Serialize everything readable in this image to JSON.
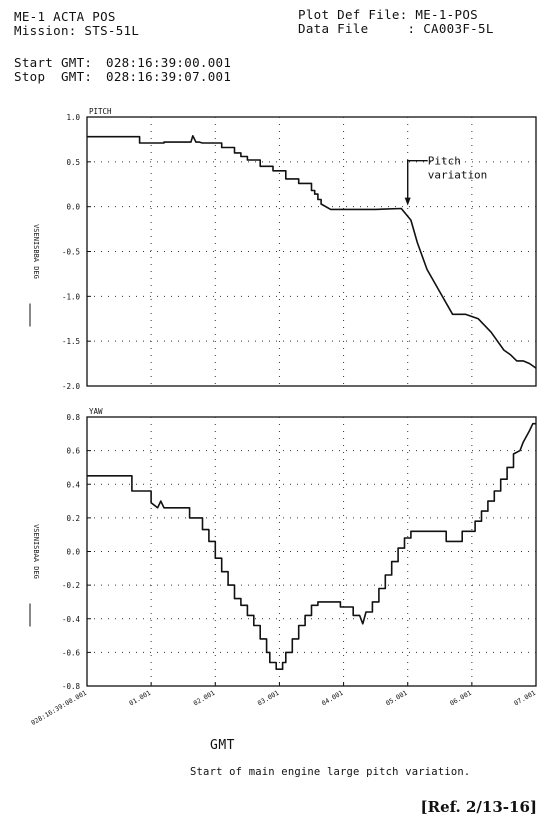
{
  "header": {
    "left_line1": "ME-1 ACTA POS",
    "left_line2": "Mission: STS-51L",
    "right_line1": "Plot Def File: ME-1-POS",
    "right_line2": "Data File     : CA003F-5L",
    "start_label": "Start GMT:",
    "start_value": "028:16:39:00.001",
    "stop_label": "Stop  GMT:",
    "stop_value": "028:16:39:07.001"
  },
  "caption": "Start of main engine large pitch variation.",
  "reference": "[Ref. 2/13-16]",
  "xaxis_title": "GMT",
  "annotation": "Pitch\nvariation",
  "chart_data": [
    {
      "type": "line",
      "title": "PITCH",
      "ylabel": "VSENISBBA DEG",
      "ylim": [
        -2.0,
        1.0
      ],
      "yticks": [
        1.0,
        0.5,
        0.0,
        -0.5,
        -1.0,
        -1.5,
        -2.0
      ],
      "ytick_labels": [
        "1.0",
        "0.5",
        "0.0",
        "-0.5",
        "-1.0",
        "-1.5",
        "-2.0"
      ],
      "xlim": [
        0,
        7
      ],
      "grid": true,
      "annotation": {
        "text": "Pitch\nvariation",
        "x": 5.0,
        "y": 0.0
      },
      "x": [
        0,
        0.4,
        0.4,
        0.5,
        0.5,
        0.82,
        0.82,
        1.2,
        1.2,
        1.62,
        1.65,
        1.7,
        1.75,
        1.8,
        2.1,
        2.1,
        2.3,
        2.3,
        2.4,
        2.4,
        2.5,
        2.5,
        2.7,
        2.7,
        2.9,
        2.9,
        3.1,
        3.1,
        3.3,
        3.3,
        3.5,
        3.5,
        3.55,
        3.55,
        3.6,
        3.6,
        3.65,
        3.65,
        3.8,
        4.0,
        4.2,
        4.5,
        4.9,
        5.05,
        5.15,
        5.3,
        5.5,
        5.7,
        5.9,
        6.1,
        6.3,
        6.5,
        6.6,
        6.7,
        6.8,
        6.9,
        7.0
      ],
      "series": [
        {
          "values": [
            0.78,
            0.78,
            0.78,
            0.78,
            0.78,
            0.78,
            0.71,
            0.71,
            0.72,
            0.72,
            0.79,
            0.72,
            0.72,
            0.71,
            0.71,
            0.66,
            0.66,
            0.6,
            0.6,
            0.56,
            0.56,
            0.52,
            0.52,
            0.45,
            0.45,
            0.4,
            0.4,
            0.31,
            0.31,
            0.26,
            0.26,
            0.18,
            0.18,
            0.14,
            0.14,
            0.08,
            0.08,
            0.03,
            -0.03,
            -0.03,
            -0.03,
            -0.03,
            -0.02,
            -0.15,
            -0.4,
            -0.7,
            -0.95,
            -1.2,
            -1.2,
            -1.25,
            -1.4,
            -1.6,
            -1.65,
            -1.72,
            -1.72,
            -1.75,
            -1.8
          ]
        }
      ]
    },
    {
      "type": "line",
      "title": "YAW",
      "ylabel": "VSENISBAA DEG",
      "ylim": [
        -0.8,
        0.8
      ],
      "yticks": [
        0.8,
        0.6,
        0.4,
        0.2,
        0.0,
        -0.2,
        -0.4,
        -0.6,
        -0.8
      ],
      "ytick_labels": [
        "0.8",
        "0.6",
        "0.4",
        "0.2",
        "0.0",
        "-0.2",
        "-0.4",
        "-0.6",
        "-0.8"
      ],
      "xlim": [
        0,
        7
      ],
      "xticks": [
        0,
        1,
        2,
        3,
        4,
        5,
        6,
        7
      ],
      "xtick_labels": [
        "028:16:39:00.001",
        "01.001",
        "02.001",
        "03.001",
        "04.001",
        "05.001",
        "06.001",
        "07.001"
      ],
      "xlabel": "GMT",
      "grid": true,
      "x": [
        0,
        0.7,
        0.7,
        1.0,
        1.0,
        1.1,
        1.15,
        1.2,
        1.2,
        1.6,
        1.6,
        1.8,
        1.8,
        1.9,
        1.9,
        2.0,
        2.0,
        2.1,
        2.1,
        2.2,
        2.2,
        2.3,
        2.3,
        2.4,
        2.4,
        2.5,
        2.5,
        2.6,
        2.6,
        2.7,
        2.7,
        2.8,
        2.8,
        2.85,
        2.85,
        2.95,
        2.95,
        3.05,
        3.05,
        3.1,
        3.1,
        3.2,
        3.2,
        3.3,
        3.3,
        3.4,
        3.4,
        3.5,
        3.5,
        3.6,
        3.6,
        3.95,
        3.95,
        4.15,
        4.15,
        4.25,
        4.3,
        4.35,
        4.45,
        4.45,
        4.55,
        4.55,
        4.65,
        4.65,
        4.75,
        4.75,
        4.85,
        4.85,
        4.95,
        4.95,
        5.05,
        5.05,
        5.15,
        5.15,
        5.6,
        5.6,
        5.85,
        5.85,
        6.05,
        6.05,
        6.15,
        6.15,
        6.25,
        6.25,
        6.35,
        6.35,
        6.45,
        6.45,
        6.55,
        6.55,
        6.65,
        6.65,
        6.75,
        6.8,
        6.9,
        6.95,
        7.0
      ],
      "series": [
        {
          "values": [
            0.45,
            0.45,
            0.36,
            0.36,
            0.29,
            0.26,
            0.3,
            0.26,
            0.26,
            0.26,
            0.2,
            0.2,
            0.13,
            0.13,
            0.06,
            0.06,
            -0.04,
            -0.04,
            -0.12,
            -0.12,
            -0.2,
            -0.2,
            -0.28,
            -0.28,
            -0.32,
            -0.32,
            -0.38,
            -0.38,
            -0.44,
            -0.44,
            -0.52,
            -0.52,
            -0.6,
            -0.6,
            -0.66,
            -0.66,
            -0.7,
            -0.7,
            -0.66,
            -0.66,
            -0.6,
            -0.6,
            -0.52,
            -0.52,
            -0.44,
            -0.44,
            -0.38,
            -0.38,
            -0.32,
            -0.32,
            -0.3,
            -0.3,
            -0.33,
            -0.33,
            -0.38,
            -0.38,
            -0.43,
            -0.36,
            -0.36,
            -0.3,
            -0.3,
            -0.22,
            -0.22,
            -0.14,
            -0.14,
            -0.06,
            -0.06,
            0.02,
            0.02,
            0.08,
            0.08,
            0.12,
            0.12,
            0.12,
            0.12,
            0.06,
            0.06,
            0.12,
            0.12,
            0.18,
            0.18,
            0.24,
            0.24,
            0.3,
            0.3,
            0.36,
            0.36,
            0.43,
            0.43,
            0.5,
            0.5,
            0.58,
            0.6,
            0.65,
            0.72,
            0.76,
            0.76
          ]
        }
      ]
    }
  ]
}
